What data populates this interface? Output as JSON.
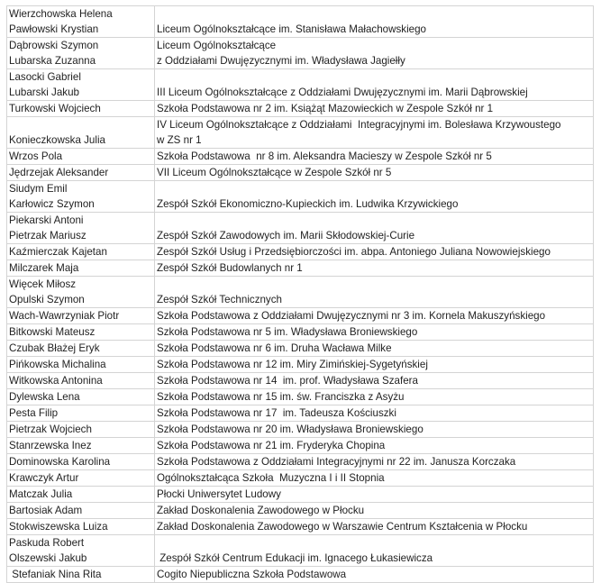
{
  "rows": [
    {
      "names": [
        "Wierzchowska Helena",
        "Pawłowski Krystian"
      ],
      "school": [
        "Liceum Ogólnokształcące im. Stanisława Małachowskiego"
      ]
    },
    {
      "names": [
        "Dąbrowski Szymon",
        "Lubarska Zuzanna"
      ],
      "school": [
        "Liceum Ogólnokształcące",
        "z Oddziałami Dwujęzycznymi im. Władysława Jagiełły"
      ]
    },
    {
      "names": [
        "Lasocki Gabriel",
        "Lubarski Jakub"
      ],
      "school": [
        "III Liceum Ogólnokształcące z Oddziałami Dwujęzycznymi im. Marii Dąbrowskiej"
      ]
    },
    {
      "names": [
        "Turkowski Wojciech"
      ],
      "school": [
        "Szkoła Podstawowa nr 2 im. Książąt Mazowieckich w Zespole Szkół nr 1"
      ]
    },
    {
      "names": [
        "Konieczkowska Julia"
      ],
      "school": [
        "IV Liceum Ogólnokształcące z Oddziałami  Integracyjnymi im. Bolesława Krzywoustego",
        "w ZS nr 1"
      ]
    },
    {
      "names": [
        "Wrzos Pola"
      ],
      "school": [
        "Szkoła Podstawowa  nr 8 im. Aleksandra Macieszy w Zespole Szkół nr 5"
      ]
    },
    {
      "names": [
        "Jędrzejak Aleksander"
      ],
      "school": [
        "VII Liceum Ogólnokształcące w Zespole Szkół nr 5"
      ]
    },
    {
      "names": [
        "Siudym Emil",
        "Karłowicz Szymon"
      ],
      "school": [
        "Zespół Szkół Ekonomiczno-Kupieckich im. Ludwika Krzywickiego"
      ]
    },
    {
      "names": [
        "Piekarski Antoni",
        "Pietrzak Mariusz"
      ],
      "school": [
        "Zespół Szkół Zawodowych im. Marii Skłodowskiej-Curie"
      ]
    },
    {
      "names": [
        "Kaźmierczak Kajetan"
      ],
      "school": [
        "Zespół Szkół Usług i Przedsiębiorczości im. abpa. Antoniego Juliana Nowowiejskiego"
      ]
    },
    {
      "names": [
        "Milczarek Maja"
      ],
      "school": [
        "Zespół Szkół Budowlanych nr 1"
      ]
    },
    {
      "names": [
        "Więcek Miłosz",
        "Opulski Szymon"
      ],
      "school": [
        "Zespół Szkół Technicznych"
      ]
    },
    {
      "names": [
        "Wach-Wawrzyniak Piotr"
      ],
      "school": [
        "Szkoła Podstawowa z Oddziałami Dwujęzycznymi nr 3 im. Kornela Makuszyńskiego"
      ]
    },
    {
      "names": [
        "Bitkowski Mateusz"
      ],
      "school": [
        "Szkoła Podstawowa nr 5 im. Władysława Broniewskiego"
      ]
    },
    {
      "names": [
        "Czubak Błażej Eryk"
      ],
      "school": [
        "Szkoła Podstawowa nr 6 im. Druha Wacława Milke"
      ]
    },
    {
      "names": [
        "Pińkowska Michalina"
      ],
      "school": [
        "Szkoła Podstawowa nr 12 im. Miry Zimińskiej-Sygetyńskiej"
      ]
    },
    {
      "names": [
        "Witkowska Antonina"
      ],
      "school": [
        "Szkoła Podstawowa nr 14  im. prof. Władysława Szafera"
      ]
    },
    {
      "names": [
        "Dylewska Lena"
      ],
      "school": [
        "Szkoła Podstawowa nr 15 im. św. Franciszka z Asyżu"
      ]
    },
    {
      "names": [
        "Pesta Filip"
      ],
      "school": [
        "Szkoła Podstawowa nr 17  im. Tadeusza Kościuszki"
      ]
    },
    {
      "names": [
        "Pietrzak Wojciech"
      ],
      "school": [
        "Szkoła Podstawowa nr 20 im. Władysława Broniewskiego"
      ]
    },
    {
      "names": [
        "Stanrzewska Inez"
      ],
      "school": [
        "Szkoła Podstawowa nr 21 im. Fryderyka Chopina"
      ]
    },
    {
      "names": [
        "Dominowska Karolina"
      ],
      "school": [
        "Szkoła Podstawowa z Oddziałami Integracyjnymi nr 22 im. Janusza Korczaka"
      ]
    },
    {
      "names": [
        "Krawczyk Artur"
      ],
      "school": [
        "Ogólnokształcąca Szkoła  Muzyczna I i II Stopnia"
      ]
    },
    {
      "names": [
        "Matczak Julia"
      ],
      "school": [
        "Płocki Uniwersytet Ludowy"
      ]
    },
    {
      "names": [
        "Bartosiak Adam"
      ],
      "school": [
        "Zakład Doskonalenia Zawodowego w Płocku"
      ]
    },
    {
      "names": [
        "Stokwiszewska Luiza"
      ],
      "school": [
        "Zakład Doskonalenia Zawodowego w Warszawie Centrum Kształcenia w Płocku"
      ]
    },
    {
      "names": [
        "Paskuda Robert",
        "Olszewski Jakub"
      ],
      "school": [
        " Zespół Szkół Centrum Edukacji im. Ignacego Łukasiewicza"
      ]
    },
    {
      "names": [
        " Stefaniak Nina Rita"
      ],
      "school": [
        "Cogito Niepubliczna Szkoła Podstawowa"
      ]
    }
  ]
}
